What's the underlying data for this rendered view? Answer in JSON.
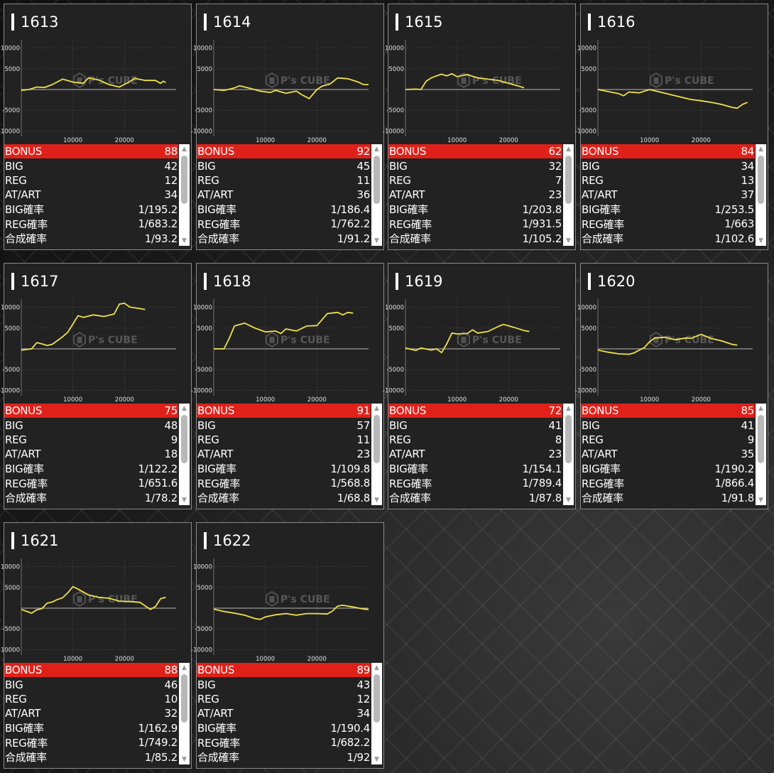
{
  "machines": [
    {
      "id": "1613",
      "stats": {
        "bonus": "88",
        "big": "42",
        "reg": "12",
        "at_art": "34",
        "big_rate": "1/195.2",
        "reg_rate": "1/683.2",
        "combined_rate": "1/93.2"
      },
      "series": [
        [
          0,
          -200
        ],
        [
          1500,
          0
        ],
        [
          3000,
          600
        ],
        [
          4500,
          500
        ],
        [
          6000,
          1200
        ],
        [
          8000,
          2500
        ],
        [
          10000,
          1800
        ],
        [
          12000,
          1500
        ],
        [
          13000,
          2800
        ],
        [
          15000,
          2300
        ],
        [
          17000,
          1200
        ],
        [
          19000,
          600
        ],
        [
          21000,
          1900
        ],
        [
          22000,
          2700
        ],
        [
          24000,
          2200
        ],
        [
          26000,
          2200
        ],
        [
          27000,
          1500
        ],
        [
          27500,
          2000
        ],
        [
          28000,
          1700
        ]
      ]
    },
    {
      "id": "1614",
      "stats": {
        "bonus": "92",
        "big": "45",
        "reg": "11",
        "at_art": "36",
        "big_rate": "1/186.4",
        "reg_rate": "1/762.2",
        "combined_rate": "1/91.2"
      },
      "series": [
        [
          0,
          0
        ],
        [
          2000,
          -200
        ],
        [
          4000,
          400
        ],
        [
          5000,
          900
        ],
        [
          7000,
          300
        ],
        [
          9000,
          -400
        ],
        [
          11000,
          -700
        ],
        [
          12000,
          -200
        ],
        [
          14000,
          -900
        ],
        [
          16000,
          -400
        ],
        [
          17000,
          -1200
        ],
        [
          18500,
          -2200
        ],
        [
          20000,
          0
        ],
        [
          21000,
          800
        ],
        [
          22500,
          1300
        ],
        [
          24000,
          2800
        ],
        [
          26000,
          2600
        ],
        [
          28000,
          1800
        ],
        [
          29000,
          1200
        ],
        [
          30000,
          1200
        ]
      ]
    },
    {
      "id": "1615",
      "stats": {
        "bonus": "62",
        "big": "32",
        "reg": "7",
        "at_art": "23",
        "big_rate": "1/203.8",
        "reg_rate": "1/931.5",
        "combined_rate": "1/105.2"
      },
      "series": [
        [
          0,
          0
        ],
        [
          2000,
          100
        ],
        [
          3000,
          0
        ],
        [
          4000,
          2000
        ],
        [
          5000,
          2800
        ],
        [
          6000,
          3300
        ],
        [
          7000,
          3700
        ],
        [
          8000,
          3300
        ],
        [
          9000,
          3800
        ],
        [
          10000,
          3100
        ],
        [
          12000,
          3600
        ],
        [
          14000,
          2800
        ],
        [
          16000,
          2500
        ],
        [
          18000,
          2200
        ],
        [
          20000,
          1500
        ],
        [
          22000,
          800
        ],
        [
          23000,
          400
        ]
      ]
    },
    {
      "id": "1616",
      "stats": {
        "bonus": "84",
        "big": "34",
        "reg": "13",
        "at_art": "37",
        "big_rate": "1/253.5",
        "reg_rate": "1/663",
        "combined_rate": "1/102.6"
      },
      "series": [
        [
          0,
          0
        ],
        [
          2000,
          -500
        ],
        [
          4000,
          -1000
        ],
        [
          5000,
          -1500
        ],
        [
          6000,
          -600
        ],
        [
          8000,
          -800
        ],
        [
          10000,
          0
        ],
        [
          12000,
          -600
        ],
        [
          14000,
          -1200
        ],
        [
          16000,
          -1800
        ],
        [
          18000,
          -2400
        ],
        [
          20000,
          -2700
        ],
        [
          22000,
          -3100
        ],
        [
          24000,
          -3600
        ],
        [
          26000,
          -4300
        ],
        [
          27000,
          -4500
        ],
        [
          28000,
          -3600
        ],
        [
          29000,
          -3100
        ]
      ]
    },
    {
      "id": "1617",
      "stats": {
        "bonus": "75",
        "big": "48",
        "reg": "9",
        "at_art": "18",
        "big_rate": "1/122.2",
        "reg_rate": "1/651.6",
        "combined_rate": "1/78.2"
      },
      "series": [
        [
          0,
          -300
        ],
        [
          2000,
          0
        ],
        [
          3000,
          1500
        ],
        [
          4000,
          1200
        ],
        [
          5000,
          800
        ],
        [
          6000,
          1100
        ],
        [
          8000,
          2900
        ],
        [
          9000,
          4000
        ],
        [
          10000,
          6000
        ],
        [
          11000,
          8000
        ],
        [
          12000,
          7600
        ],
        [
          14000,
          8200
        ],
        [
          16000,
          7800
        ],
        [
          18000,
          8400
        ],
        [
          19000,
          10800
        ],
        [
          20000,
          11000
        ],
        [
          21000,
          10100
        ],
        [
          23000,
          9700
        ],
        [
          24000,
          9500
        ]
      ]
    },
    {
      "id": "1618",
      "stats": {
        "bonus": "91",
        "big": "57",
        "reg": "11",
        "at_art": "23",
        "big_rate": "1/109.8",
        "reg_rate": "1/568.8",
        "combined_rate": "1/68.8"
      },
      "series": [
        [
          0,
          0
        ],
        [
          2000,
          0
        ],
        [
          3000,
          2500
        ],
        [
          4000,
          5500
        ],
        [
          6000,
          6200
        ],
        [
          8000,
          5000
        ],
        [
          10000,
          4100
        ],
        [
          12000,
          4300
        ],
        [
          13000,
          3700
        ],
        [
          14000,
          4800
        ],
        [
          16000,
          4300
        ],
        [
          18000,
          5500
        ],
        [
          20000,
          5600
        ],
        [
          22000,
          8500
        ],
        [
          24000,
          8800
        ],
        [
          25000,
          8200
        ],
        [
          26000,
          8800
        ],
        [
          27000,
          8600
        ]
      ]
    },
    {
      "id": "1619",
      "stats": {
        "bonus": "72",
        "big": "41",
        "reg": "8",
        "at_art": "23",
        "big_rate": "1/154.1",
        "reg_rate": "1/789.4",
        "combined_rate": "1/87.8"
      },
      "series": [
        [
          0,
          200
        ],
        [
          2000,
          -400
        ],
        [
          3000,
          200
        ],
        [
          5000,
          -300
        ],
        [
          6000,
          0
        ],
        [
          7000,
          -900
        ],
        [
          8000,
          1200
        ],
        [
          9000,
          3800
        ],
        [
          10000,
          3600
        ],
        [
          12000,
          3700
        ],
        [
          13000,
          4600
        ],
        [
          14000,
          3800
        ],
        [
          16000,
          4200
        ],
        [
          18000,
          5400
        ],
        [
          19000,
          5900
        ],
        [
          21000,
          5200
        ],
        [
          23000,
          4400
        ],
        [
          24000,
          4200
        ]
      ]
    },
    {
      "id": "1620",
      "stats": {
        "bonus": "85",
        "big": "41",
        "reg": "9",
        "at_art": "35",
        "big_rate": "1/190.2",
        "reg_rate": "1/866.4",
        "combined_rate": "1/91.8"
      },
      "series": [
        [
          0,
          -300
        ],
        [
          2000,
          -800
        ],
        [
          4000,
          -1200
        ],
        [
          6000,
          -1300
        ],
        [
          7000,
          -1000
        ],
        [
          8000,
          -300
        ],
        [
          9000,
          300
        ],
        [
          10000,
          1700
        ],
        [
          11000,
          2600
        ],
        [
          13000,
          2800
        ],
        [
          15000,
          2200
        ],
        [
          17000,
          2600
        ],
        [
          18000,
          2500
        ],
        [
          20000,
          3500
        ],
        [
          22000,
          2500
        ],
        [
          24000,
          1900
        ],
        [
          26000,
          1100
        ],
        [
          27000,
          900
        ]
      ]
    },
    {
      "id": "1621",
      "stats": {
        "bonus": "88",
        "big": "46",
        "reg": "10",
        "at_art": "32",
        "big_rate": "1/162.9",
        "reg_rate": "1/749.2",
        "combined_rate": "1/85.2"
      },
      "series": [
        [
          0,
          -300
        ],
        [
          2000,
          -1200
        ],
        [
          3000,
          -400
        ],
        [
          4000,
          -100
        ],
        [
          5000,
          1200
        ],
        [
          6000,
          1500
        ],
        [
          7000,
          2100
        ],
        [
          8000,
          2500
        ],
        [
          9000,
          3700
        ],
        [
          10000,
          5200
        ],
        [
          11000,
          4600
        ],
        [
          13000,
          3200
        ],
        [
          15000,
          2600
        ],
        [
          17000,
          2400
        ],
        [
          19000,
          1700
        ],
        [
          21000,
          1600
        ],
        [
          23000,
          1400
        ],
        [
          25000,
          -300
        ],
        [
          26000,
          400
        ],
        [
          27000,
          2300
        ],
        [
          28000,
          2600
        ]
      ]
    },
    {
      "id": "1622",
      "stats": {
        "bonus": "89",
        "big": "43",
        "reg": "12",
        "at_art": "34",
        "big_rate": "1/190.4",
        "reg_rate": "1/682.2",
        "combined_rate": "1/92"
      },
      "series": [
        [
          0,
          -200
        ],
        [
          2000,
          -800
        ],
        [
          4000,
          -1200
        ],
        [
          6000,
          -1700
        ],
        [
          8000,
          -2500
        ],
        [
          9000,
          -2700
        ],
        [
          10000,
          -2100
        ],
        [
          12000,
          -1600
        ],
        [
          14000,
          -1300
        ],
        [
          16000,
          -1700
        ],
        [
          18000,
          -1300
        ],
        [
          20000,
          -1300
        ],
        [
          22000,
          -1400
        ],
        [
          23000,
          -700
        ],
        [
          24000,
          500
        ],
        [
          25000,
          700
        ],
        [
          27000,
          300
        ],
        [
          29000,
          -200
        ],
        [
          30000,
          -300
        ]
      ]
    }
  ],
  "labels": {
    "bonus": "BONUS",
    "big": "BIG",
    "reg": "REG",
    "at_art": "AT/ART",
    "big_rate": "BIG確率",
    "reg_rate": "REG確率",
    "combined_rate": "合成確率"
  },
  "chart_axes": {
    "x_ticks": [
      "10000",
      "20000"
    ],
    "y_ticks": [
      "10000",
      "5000",
      "-5000",
      "-10000"
    ],
    "x_tick_values": [
      10000,
      20000
    ],
    "y_tick_values": [
      10000,
      5000,
      -5000,
      -10000
    ],
    "xlim": [
      0,
      30000
    ],
    "ylim": [
      -12000,
      12000
    ]
  },
  "watermark": {
    "text": "P's CUBE"
  },
  "colors": {
    "bonus_bar": "#e0211a",
    "line": "#f0e14a",
    "card_bg": "#222222",
    "card_border": "#8a8a8a",
    "grid": "#5a5a5a",
    "zero_line": "#9a9a9a"
  },
  "icons": {
    "scroll_up": "triangle-up-icon",
    "scroll_down": "triangle-down-icon"
  },
  "chart_data": [
    {
      "type": "line",
      "title": "1613",
      "xlim": [
        0,
        30000
      ],
      "ylim": [
        -12000,
        12000
      ],
      "x_ticks": [
        10000,
        20000
      ],
      "y_ticks": [
        10000,
        5000,
        -5000,
        -10000
      ]
    },
    {
      "type": "line",
      "title": "1614",
      "xlim": [
        0,
        30000
      ],
      "ylim": [
        -12000,
        12000
      ],
      "x_ticks": [
        10000,
        20000
      ],
      "y_ticks": [
        10000,
        5000,
        -5000,
        -10000
      ]
    },
    {
      "type": "line",
      "title": "1615",
      "xlim": [
        0,
        30000
      ],
      "ylim": [
        -12000,
        12000
      ],
      "x_ticks": [
        10000,
        20000
      ],
      "y_ticks": [
        10000,
        5000,
        -5000,
        -10000
      ]
    },
    {
      "type": "line",
      "title": "1616",
      "xlim": [
        0,
        30000
      ],
      "ylim": [
        -12000,
        12000
      ],
      "x_ticks": [
        10000,
        20000
      ],
      "y_ticks": [
        10000,
        5000,
        -5000,
        -10000
      ]
    },
    {
      "type": "line",
      "title": "1617",
      "xlim": [
        0,
        30000
      ],
      "ylim": [
        -12000,
        12000
      ],
      "x_ticks": [
        10000,
        20000
      ],
      "y_ticks": [
        10000,
        5000,
        -5000,
        -10000
      ]
    },
    {
      "type": "line",
      "title": "1618",
      "xlim": [
        0,
        30000
      ],
      "ylim": [
        -12000,
        12000
      ],
      "x_ticks": [
        10000,
        20000
      ],
      "y_ticks": [
        10000,
        5000,
        -5000,
        -10000
      ]
    },
    {
      "type": "line",
      "title": "1619",
      "xlim": [
        0,
        30000
      ],
      "ylim": [
        -12000,
        12000
      ],
      "x_ticks": [
        10000,
        20000
      ],
      "y_ticks": [
        10000,
        5000,
        -5000,
        -10000
      ]
    },
    {
      "type": "line",
      "title": "1620",
      "xlim": [
        0,
        30000
      ],
      "ylim": [
        -12000,
        12000
      ],
      "x_ticks": [
        10000,
        20000
      ],
      "y_ticks": [
        10000,
        5000,
        -5000,
        -10000
      ]
    },
    {
      "type": "line",
      "title": "1621",
      "xlim": [
        0,
        30000
      ],
      "ylim": [
        -12000,
        12000
      ],
      "x_ticks": [
        10000,
        20000
      ],
      "y_ticks": [
        10000,
        5000,
        -5000,
        -10000
      ]
    },
    {
      "type": "line",
      "title": "1622",
      "xlim": [
        0,
        30000
      ],
      "ylim": [
        -12000,
        12000
      ],
      "x_ticks": [
        10000,
        20000
      ],
      "y_ticks": [
        10000,
        5000,
        -5000,
        -10000
      ]
    }
  ]
}
